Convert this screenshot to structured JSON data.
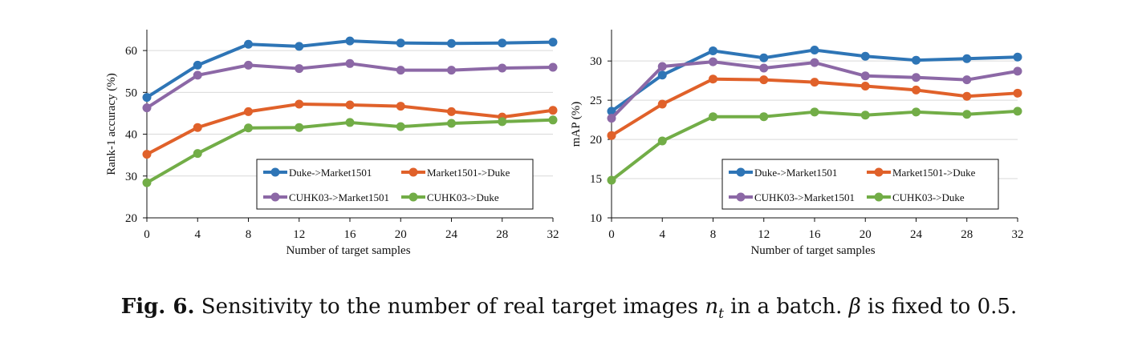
{
  "caption": {
    "label": "Fig. 6.",
    "text_before": "Sensitivity to the number of real target images",
    "math_var": "n",
    "math_sub": "t",
    "text_middle": "in a batch.",
    "beta": "β",
    "text_after": "is fixed to 0.5."
  },
  "chart_data": [
    {
      "type": "line",
      "title": "",
      "xlabel": "Number of target samples",
      "ylabel": "Rank-1 accuracy (%)",
      "x": [
        0,
        4,
        8,
        12,
        16,
        20,
        24,
        28,
        32
      ],
      "xticks": [
        "0",
        "4",
        "8",
        "12",
        "16",
        "20",
        "24",
        "28",
        "32"
      ],
      "ylim": [
        20,
        65
      ],
      "yticks": [
        20,
        30,
        40,
        50,
        60
      ],
      "grid": true,
      "legend_position": "bottom-right",
      "series": [
        {
          "name": "Duke->Market1501",
          "color": "#2e75b6",
          "values": [
            48.8,
            56.5,
            61.5,
            61.0,
            62.3,
            61.8,
            61.7,
            61.8,
            62.0
          ]
        },
        {
          "name": "Market1501->Duke",
          "color": "#e0612a",
          "values": [
            35.2,
            41.6,
            45.4,
            47.2,
            47.0,
            46.7,
            45.4,
            44.1,
            45.7
          ]
        },
        {
          "name": "CUHK03->Market1501",
          "color": "#8c68a6",
          "values": [
            46.3,
            54.1,
            56.5,
            55.7,
            56.9,
            55.3,
            55.3,
            55.8,
            56.0
          ]
        },
        {
          "name": "CUHK03->Duke",
          "color": "#72ad47",
          "values": [
            28.4,
            35.4,
            41.5,
            41.6,
            42.8,
            41.8,
            42.6,
            43.0,
            43.4
          ]
        }
      ]
    },
    {
      "type": "line",
      "title": "",
      "xlabel": "Number of target samples",
      "ylabel": "mAP (%)",
      "x": [
        0,
        4,
        8,
        12,
        16,
        20,
        24,
        28,
        32
      ],
      "xticks": [
        "0",
        "4",
        "8",
        "12",
        "16",
        "20",
        "24",
        "28",
        "32"
      ],
      "ylim": [
        10,
        34
      ],
      "yticks": [
        10,
        15,
        20,
        25,
        30
      ],
      "grid": true,
      "legend_position": "bottom-right",
      "series": [
        {
          "name": "Duke->Market1501",
          "color": "#2e75b6",
          "values": [
            23.6,
            28.2,
            31.3,
            30.4,
            31.4,
            30.6,
            30.1,
            30.3,
            30.5
          ]
        },
        {
          "name": "Market1501->Duke",
          "color": "#e0612a",
          "values": [
            20.5,
            24.5,
            27.7,
            27.6,
            27.3,
            26.8,
            26.3,
            25.5,
            25.9
          ]
        },
        {
          "name": "CUHK03->Market1501",
          "color": "#8c68a6",
          "values": [
            22.7,
            29.3,
            29.9,
            29.1,
            29.8,
            28.1,
            27.9,
            27.6,
            28.7
          ]
        },
        {
          "name": "CUHK03->Duke",
          "color": "#72ad47",
          "values": [
            14.8,
            19.8,
            22.9,
            22.9,
            23.5,
            23.1,
            23.5,
            23.2,
            23.6
          ]
        }
      ]
    }
  ]
}
